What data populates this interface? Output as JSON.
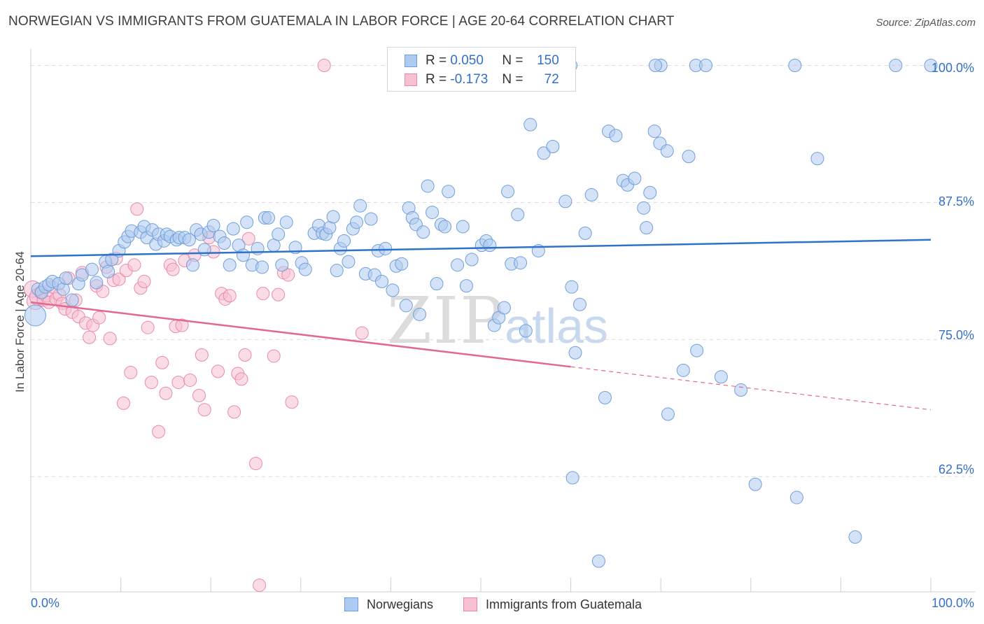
{
  "title": "NORWEGIAN VS IMMIGRANTS FROM GUATEMALA IN LABOR FORCE | AGE 20-64 CORRELATION CHART",
  "source": "Source: ZipAtlas.com",
  "watermark": {
    "zip": "ZIP",
    "atlas": "atlas"
  },
  "legend": {
    "rows": [
      {
        "r_label": "R =",
        "r_value": "0.050",
        "n_label": "N =",
        "n_value": "150"
      },
      {
        "r_label": "R =",
        "r_value": "-0.173",
        "n_label": "N =",
        "n_value": "72"
      }
    ]
  },
  "colors": {
    "blue_fill": "#aecbef",
    "blue_edge": "#6f9fdc",
    "blue_line": "#2f72c9",
    "pink_fill": "#f6bfd2",
    "pink_edge": "#e98aab",
    "pink_line": "#e2688f",
    "tick_label": "#3370c9",
    "grid": "#dcdcdc"
  },
  "chart_data": {
    "type": "scatter",
    "title": "NORWEGIAN VS IMMIGRANTS FROM GUATEMALA IN LABOR FORCE | AGE 20-64 CORRELATION CHART",
    "xlabel": "",
    "ylabel": "In Labor Force | Age 20-64",
    "xlim": [
      0,
      100
    ],
    "ylim": [
      52,
      101.5
    ],
    "x_tick_labels": [
      "0.0%",
      "100.0%"
    ],
    "y_ticks": [
      62.5,
      75.0,
      87.5,
      100.0
    ],
    "y_tick_labels": [
      "62.5%",
      "75.0%",
      "87.5%",
      "100.0%"
    ],
    "grid": true,
    "legend_position": "top-center",
    "series": [
      {
        "name": "Norwegians",
        "color": "#aecbef",
        "r": 0.05,
        "n": 150,
        "trend": {
          "x": [
            0,
            100
          ],
          "y": [
            82.6,
            84.1
          ],
          "dashed_from": null
        },
        "points": [
          [
            0.5,
            77.2
          ],
          [
            0.8,
            79.6
          ],
          [
            1.2,
            79.3
          ],
          [
            1.6,
            79.8
          ],
          [
            2.0,
            80.0
          ],
          [
            2.4,
            80.3
          ],
          [
            3.1,
            80.1
          ],
          [
            3.6,
            79.6
          ],
          [
            3.9,
            80.6
          ],
          [
            4.6,
            78.6
          ],
          [
            5.3,
            80.1
          ],
          [
            5.7,
            80.9
          ],
          [
            6.8,
            81.4
          ],
          [
            7.3,
            80.2
          ],
          [
            8.3,
            82.1
          ],
          [
            8.6,
            81.2
          ],
          [
            9.0,
            82.3
          ],
          [
            9.8,
            83.1
          ],
          [
            10.4,
            83.9
          ],
          [
            10.8,
            84.4
          ],
          [
            11.2,
            84.9
          ],
          [
            12.2,
            84.8
          ],
          [
            12.6,
            85.3
          ],
          [
            12.9,
            84.3
          ],
          [
            13.5,
            85.0
          ],
          [
            13.9,
            83.7
          ],
          [
            14.2,
            84.6
          ],
          [
            14.8,
            84.0
          ],
          [
            15.1,
            84.6
          ],
          [
            15.5,
            84.4
          ],
          [
            16.2,
            84.1
          ],
          [
            16.5,
            84.3
          ],
          [
            17.1,
            84.3
          ],
          [
            17.6,
            84.1
          ],
          [
            18.0,
            81.8
          ],
          [
            18.4,
            85.0
          ],
          [
            18.9,
            84.6
          ],
          [
            19.3,
            83.2
          ],
          [
            19.8,
            84.8
          ],
          [
            20.3,
            85.4
          ],
          [
            21.0,
            84.4
          ],
          [
            21.5,
            83.8
          ],
          [
            22.1,
            81.8
          ],
          [
            22.5,
            85.1
          ],
          [
            23.1,
            83.6
          ],
          [
            23.6,
            82.7
          ],
          [
            24.0,
            85.7
          ],
          [
            24.6,
            81.8
          ],
          [
            25.2,
            83.3
          ],
          [
            25.7,
            81.6
          ],
          [
            26.0,
            86.1
          ],
          [
            26.4,
            86.1
          ],
          [
            27.0,
            83.6
          ],
          [
            27.5,
            84.6
          ],
          [
            27.9,
            81.8
          ],
          [
            28.4,
            85.7
          ],
          [
            29.4,
            83.4
          ],
          [
            30.1,
            82.0
          ],
          [
            30.5,
            81.4
          ],
          [
            31.5,
            84.7
          ],
          [
            32.0,
            85.4
          ],
          [
            32.4,
            84.7
          ],
          [
            32.8,
            84.6
          ],
          [
            33.2,
            85.2
          ],
          [
            33.6,
            86.2
          ],
          [
            34.0,
            81.3
          ],
          [
            34.4,
            83.3
          ],
          [
            34.8,
            84.0
          ],
          [
            35.3,
            82.1
          ],
          [
            35.8,
            85.1
          ],
          [
            36.2,
            85.7
          ],
          [
            36.6,
            87.2
          ],
          [
            37.2,
            81.0
          ],
          [
            37.8,
            86.0
          ],
          [
            38.2,
            80.9
          ],
          [
            38.6,
            83.1
          ],
          [
            39.0,
            80.3
          ],
          [
            39.4,
            83.3
          ],
          [
            40.2,
            79.5
          ],
          [
            40.6,
            81.7
          ],
          [
            41.2,
            81.9
          ],
          [
            41.7,
            78.1
          ],
          [
            42.0,
            87.0
          ],
          [
            42.4,
            86.1
          ],
          [
            42.8,
            85.5
          ],
          [
            43.2,
            77.3
          ],
          [
            43.6,
            84.8
          ],
          [
            44.1,
            89.0
          ],
          [
            44.6,
            86.6
          ],
          [
            45.1,
            80.1
          ],
          [
            45.6,
            85.5
          ],
          [
            46.0,
            85.3
          ],
          [
            46.4,
            88.5
          ],
          [
            47.4,
            81.8
          ],
          [
            48.0,
            85.3
          ],
          [
            48.4,
            79.9
          ],
          [
            49.0,
            82.3
          ],
          [
            50.1,
            83.6
          ],
          [
            50.6,
            84.0
          ],
          [
            51.0,
            83.6
          ],
          [
            51.5,
            76.3
          ],
          [
            52.0,
            77.0
          ],
          [
            52.6,
            77.9
          ],
          [
            53.0,
            88.5
          ],
          [
            53.4,
            81.9
          ],
          [
            54.1,
            86.4
          ],
          [
            54.4,
            82.0
          ],
          [
            55.0,
            75.8
          ],
          [
            55.5,
            94.6
          ],
          [
            56.4,
            83.1
          ],
          [
            57.0,
            92.0
          ],
          [
            58.0,
            92.6
          ],
          [
            59.4,
            87.6
          ],
          [
            60.1,
            79.8
          ],
          [
            60.5,
            73.8
          ],
          [
            61.0,
            78.2
          ],
          [
            61.6,
            84.7
          ],
          [
            62.3,
            88.2
          ],
          [
            63.8,
            69.7
          ],
          [
            64.2,
            94.0
          ],
          [
            65.0,
            93.6
          ],
          [
            65.8,
            89.5
          ],
          [
            66.3,
            89.1
          ],
          [
            67.1,
            89.7
          ],
          [
            68.1,
            87.0
          ],
          [
            68.4,
            85.2
          ],
          [
            68.8,
            88.4
          ],
          [
            69.3,
            94.0
          ],
          [
            69.9,
            92.9
          ],
          [
            70.7,
            92.2
          ],
          [
            70.8,
            68.2
          ],
          [
            72.5,
            72.2
          ],
          [
            73.1,
            91.7
          ],
          [
            74.0,
            74.0
          ],
          [
            76.7,
            71.6
          ],
          [
            78.9,
            70.4
          ],
          [
            80.5,
            61.8
          ],
          [
            85.1,
            60.6
          ],
          [
            87.4,
            91.5
          ],
          [
            91.6,
            57.0
          ],
          [
            60.0,
            100.0
          ],
          [
            63.1,
            54.8
          ],
          [
            70.0,
            100.0
          ],
          [
            73.9,
            100.0
          ],
          [
            84.9,
            100.0
          ],
          [
            96.1,
            100.0
          ],
          [
            100.0,
            100.0
          ],
          [
            75.0,
            100.0
          ],
          [
            60.2,
            62.4
          ],
          [
            69.4,
            100.0
          ]
        ]
      },
      {
        "name": "Immigrants from Guatemala",
        "color": "#f6bfd2",
        "r": -0.173,
        "n": 72,
        "trend": {
          "x": [
            0,
            100
          ],
          "y": [
            78.4,
            68.6
          ],
          "dashed_from": 60
        },
        "points": [
          [
            0.2,
            79.6
          ],
          [
            0.5,
            78.5
          ],
          [
            0.8,
            78.9
          ],
          [
            1.1,
            79.3
          ],
          [
            1.4,
            78.6
          ],
          [
            1.7,
            79.0
          ],
          [
            2.0,
            78.4
          ],
          [
            2.4,
            79.8
          ],
          [
            2.8,
            78.7
          ],
          [
            3.2,
            79.1
          ],
          [
            3.5,
            78.3
          ],
          [
            3.8,
            77.8
          ],
          [
            4.2,
            80.6
          ],
          [
            4.6,
            77.5
          ],
          [
            5.0,
            78.6
          ],
          [
            5.3,
            77.1
          ],
          [
            5.7,
            81.1
          ],
          [
            6.1,
            76.5
          ],
          [
            6.5,
            75.2
          ],
          [
            6.9,
            76.3
          ],
          [
            7.3,
            79.9
          ],
          [
            7.6,
            77.0
          ],
          [
            8.0,
            79.4
          ],
          [
            8.4,
            81.6
          ],
          [
            8.8,
            75.1
          ],
          [
            9.2,
            80.4
          ],
          [
            9.5,
            82.4
          ],
          [
            9.8,
            80.5
          ],
          [
            10.3,
            69.2
          ],
          [
            10.6,
            81.3
          ],
          [
            11.1,
            72.0
          ],
          [
            11.5,
            81.8
          ],
          [
            11.8,
            86.9
          ],
          [
            12.2,
            79.7
          ],
          [
            12.6,
            80.3
          ],
          [
            13.0,
            76.1
          ],
          [
            13.4,
            71.1
          ],
          [
            14.2,
            66.6
          ],
          [
            14.6,
            72.9
          ],
          [
            15.0,
            70.1
          ],
          [
            15.5,
            81.8
          ],
          [
            15.8,
            81.4
          ],
          [
            16.1,
            76.2
          ],
          [
            16.4,
            71.1
          ],
          [
            16.8,
            76.3
          ],
          [
            17.1,
            82.2
          ],
          [
            17.7,
            71.3
          ],
          [
            18.2,
            82.7
          ],
          [
            18.7,
            69.9
          ],
          [
            19.0,
            73.6
          ],
          [
            19.3,
            68.6
          ],
          [
            19.8,
            84.3
          ],
          [
            20.3,
            83.0
          ],
          [
            20.8,
            72.1
          ],
          [
            21.2,
            79.2
          ],
          [
            21.6,
            78.7
          ],
          [
            22.1,
            79.0
          ],
          [
            22.6,
            68.4
          ],
          [
            23.0,
            71.9
          ],
          [
            23.4,
            71.4
          ],
          [
            23.8,
            73.6
          ],
          [
            24.2,
            84.2
          ],
          [
            25.0,
            63.7
          ],
          [
            25.4,
            52.6
          ],
          [
            25.8,
            79.2
          ],
          [
            27.0,
            73.5
          ],
          [
            27.5,
            79.1
          ],
          [
            28.1,
            81.1
          ],
          [
            28.6,
            80.9
          ],
          [
            29.0,
            69.3
          ],
          [
            32.6,
            100.0
          ],
          [
            36.8,
            75.6
          ]
        ]
      }
    ]
  }
}
